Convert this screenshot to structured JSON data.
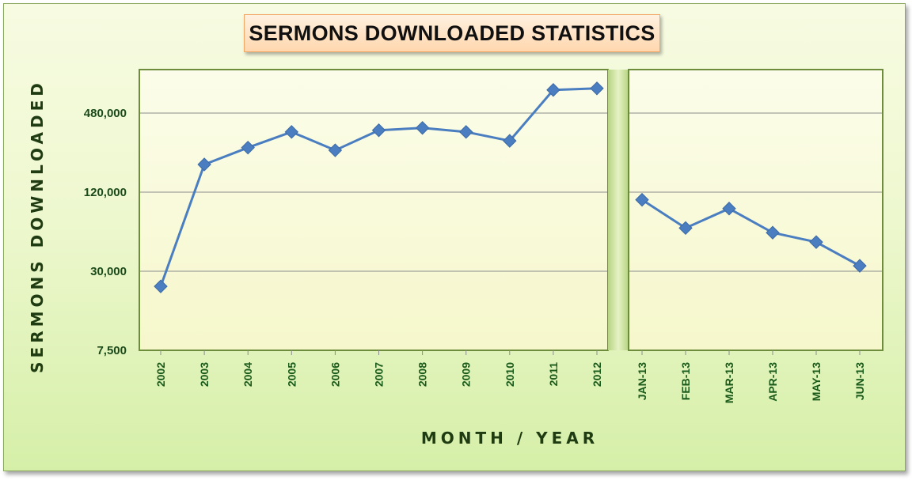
{
  "chart_data": {
    "type": "line",
    "title": "SERMONS DOWNLOADED STATISTICS",
    "xlabel": "MONTH / YEAR",
    "ylabel": "SERMONS DOWNLOADED",
    "y_scale": "log",
    "ylim": [
      7500,
      960000
    ],
    "yticks": [
      7500,
      30000,
      120000,
      480000
    ],
    "ytick_labels": [
      "7,500",
      "30,000",
      "120,000",
      "480,000"
    ],
    "grid": true,
    "legend": "none",
    "line_color": "#4a7ec0",
    "marker": "diamond",
    "panels": [
      {
        "name": "yearly",
        "categories": [
          "2002",
          "2003",
          "2004",
          "2005",
          "2006",
          "2007",
          "2008",
          "2009",
          "2010",
          "2011",
          "2012"
        ],
        "values": [
          23000,
          195000,
          262000,
          345000,
          250000,
          355000,
          370000,
          345000,
          295000,
          720000,
          740000
        ]
      },
      {
        "name": "monthly",
        "categories": [
          "JAN-13",
          "FEB-13",
          "MAR-13",
          "APR-13",
          "MAY-13",
          "JUN-13"
        ],
        "values": [
          105000,
          64000,
          90000,
          59000,
          50000,
          33000
        ]
      }
    ]
  }
}
